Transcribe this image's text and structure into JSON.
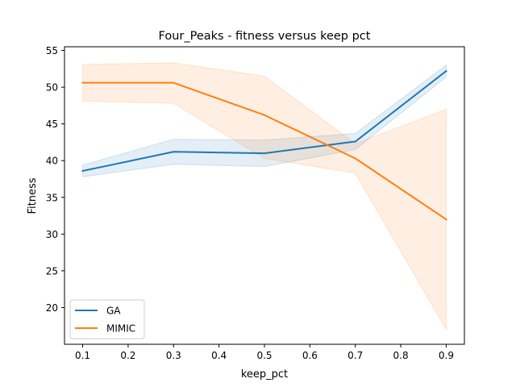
{
  "chart_data": {
    "type": "line",
    "title": "Four_Peaks - fitness versus keep pct",
    "xlabel": "keep_pct",
    "ylabel": "Fitness",
    "xlim": [
      0.06,
      0.94
    ],
    "ylim": [
      15.0,
      55.5
    ],
    "xticks": [
      0.1,
      0.2,
      0.3,
      0.4,
      0.5,
      0.6,
      0.7,
      0.8,
      0.9
    ],
    "xtick_labels": [
      "0.1",
      "0.2",
      "0.3",
      "0.4",
      "0.5",
      "0.6",
      "0.7",
      "0.8",
      "0.9"
    ],
    "yticks": [
      20,
      25,
      30,
      35,
      40,
      45,
      50,
      55
    ],
    "ytick_labels": [
      "20",
      "25",
      "30",
      "35",
      "40",
      "45",
      "50",
      "55"
    ],
    "grid": false,
    "legend_position": "lower-left",
    "series": [
      {
        "name": "GA",
        "color": "#1f77b4",
        "x": [
          0.1,
          0.3,
          0.5,
          0.7,
          0.9
        ],
        "y": [
          38.6,
          41.2,
          41.0,
          42.6,
          52.2
        ],
        "ci_low": [
          37.8,
          39.5,
          39.2,
          41.5,
          51.4
        ],
        "ci_high": [
          39.4,
          42.9,
          42.8,
          43.7,
          53.0
        ]
      },
      {
        "name": "MIMIC",
        "color": "#ff7f0e",
        "x": [
          0.1,
          0.3,
          0.5,
          0.7,
          0.9
        ],
        "y": [
          50.6,
          50.6,
          46.2,
          40.3,
          32.0
        ],
        "ci_low": [
          48.1,
          47.8,
          40.3,
          38.3,
          17.0
        ],
        "ci_high": [
          53.1,
          53.3,
          51.5,
          42.3,
          47.0
        ]
      }
    ]
  }
}
